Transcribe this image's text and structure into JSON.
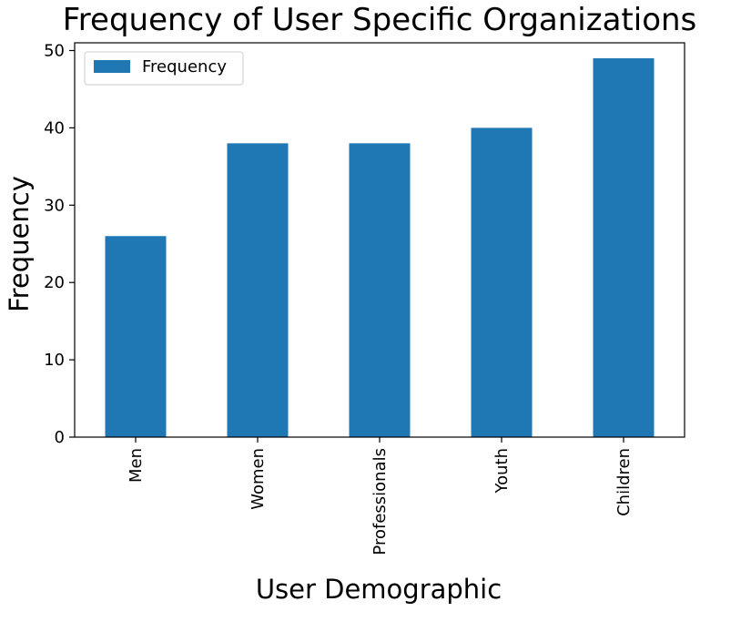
{
  "chart_data": {
    "type": "bar",
    "title": "Frequency of User Specific Organizations",
    "xlabel": "User Demographic",
    "ylabel": "Frequency",
    "categories": [
      "Men",
      "Women",
      "Professionals",
      "Youth",
      "Children"
    ],
    "series": [
      {
        "name": "Frequency",
        "values": [
          26,
          38,
          38,
          40,
          49
        ],
        "color": "#1f77b4"
      }
    ],
    "ylim": [
      0,
      51
    ],
    "yticks": [
      0,
      10,
      20,
      30,
      40,
      50
    ],
    "ytick_labels": [
      "0",
      "10",
      "20",
      "30",
      "40",
      "50"
    ],
    "grid": false,
    "legend_position": "top-left",
    "xtick_rotation": "vertical"
  }
}
